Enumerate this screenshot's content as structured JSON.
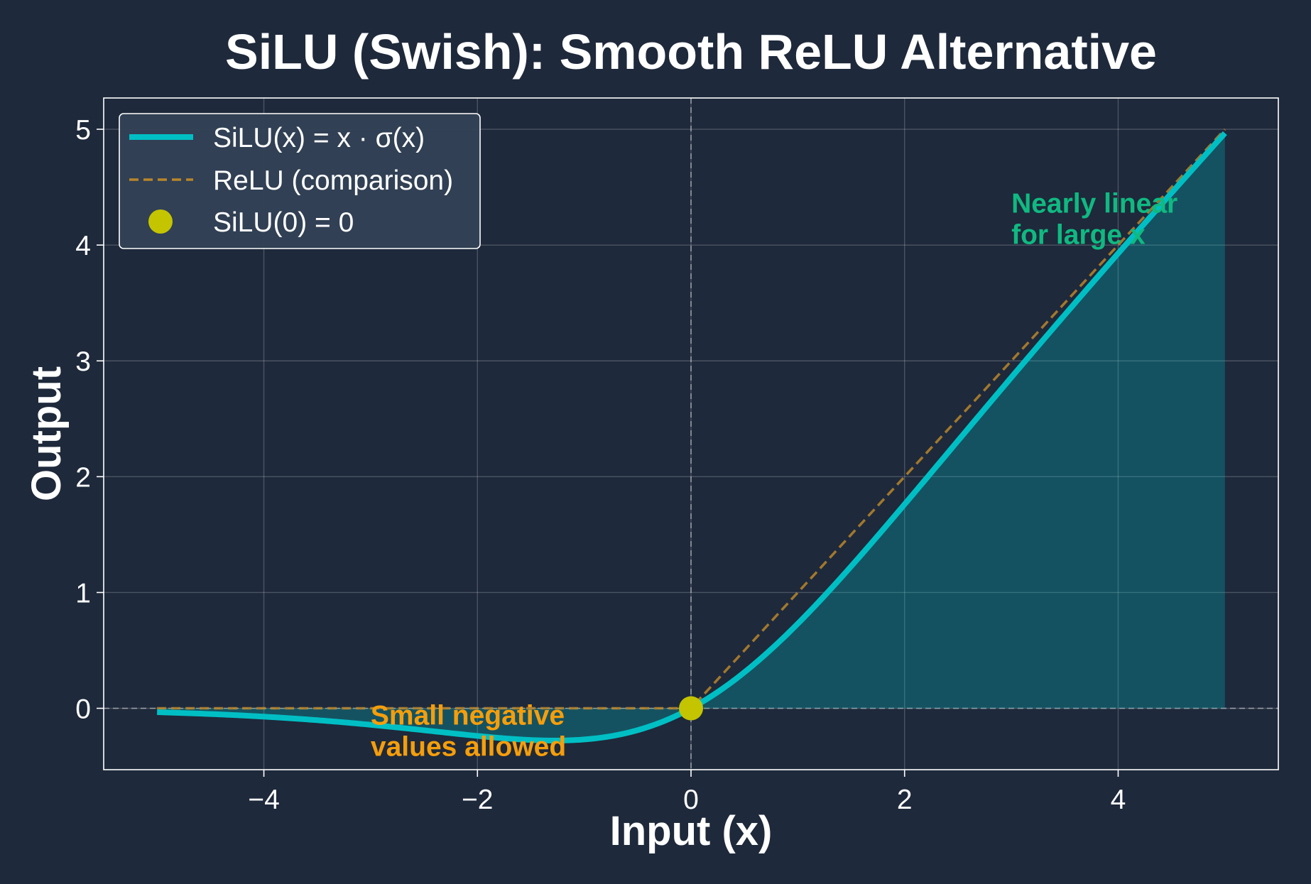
{
  "chart_data": {
    "type": "line",
    "title": "SiLU (Swish): Smooth ReLU Alternative",
    "xlabel": "Input (x)",
    "ylabel": "Output",
    "xlim": [
      -5.5,
      5.5
    ],
    "ylim": [
      -0.53,
      5.27
    ],
    "xticks": [
      -4,
      -2,
      0,
      2,
      4
    ],
    "xtick_labels": [
      "−4",
      "−2",
      "0",
      "2",
      "4"
    ],
    "yticks": [
      0,
      1,
      2,
      3,
      4,
      5
    ],
    "ytick_labels": [
      "0",
      "1",
      "2",
      "3",
      "4",
      "5"
    ],
    "grid": true,
    "legend_position": "upper-left",
    "x_range": [
      -5,
      5
    ],
    "series": [
      {
        "name": "SiLU(x) = x · σ(x)",
        "function": "x * sigmoid(x)",
        "color": "#00bfc4",
        "style": "solid",
        "fill_under": true,
        "x": [
          -5,
          -4,
          -3,
          -2,
          -1.278,
          -1,
          0,
          1,
          2,
          3,
          4,
          5
        ],
        "y": [
          -0.033,
          -0.072,
          -0.142,
          -0.238,
          -0.278,
          -0.269,
          0,
          0.731,
          1.762,
          2.858,
          3.928,
          4.967
        ]
      },
      {
        "name": "ReLU (comparison)",
        "function": "max(0, x)",
        "color": "#b8862b",
        "style": "dashed",
        "x": [
          -5,
          0,
          5
        ],
        "y": [
          0,
          0,
          5
        ]
      },
      {
        "name": "SiLU(0) = 0",
        "type": "point",
        "color": "#c4c400",
        "x": [
          0
        ],
        "y": [
          0
        ]
      }
    ],
    "annotations": [
      {
        "lines": [
          "Nearly linear",
          "for large x"
        ],
        "x": 3,
        "y": 4.28,
        "color": "#10b981"
      },
      {
        "lines": [
          "Small negative",
          "values allowed"
        ],
        "x": -3,
        "y": -0.14,
        "color": "#f59e0b"
      }
    ]
  }
}
